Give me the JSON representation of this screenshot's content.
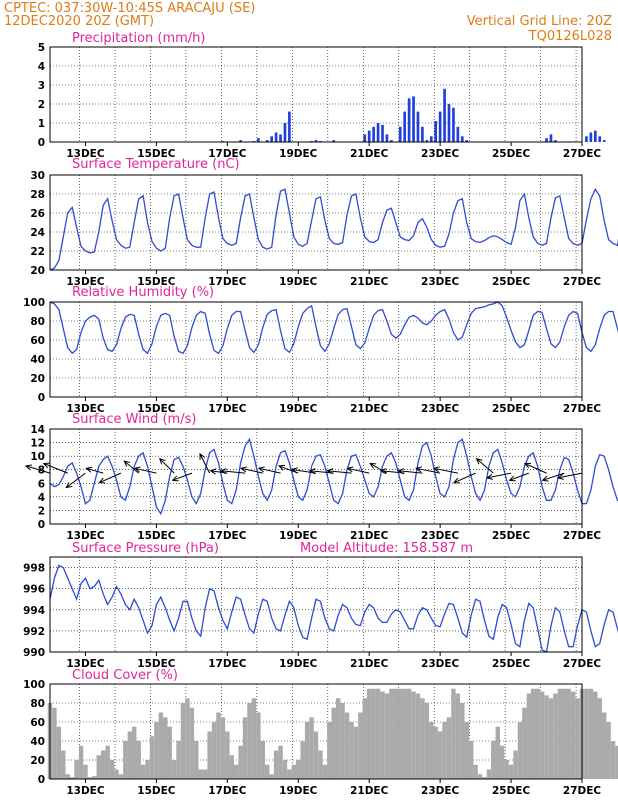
{
  "header": {
    "left_line1": "CPTEC:   037:30W-10:45S   ARACAJU (SE)",
    "left_line2": "12DEC2020 20Z (GMT)",
    "right_line1": "Vertical Grid Line: 20Z",
    "right_line2": "TQ0126L028"
  },
  "colors": {
    "header": "#e07b1a",
    "title": "#e0259a",
    "line": "#2e4bd6",
    "bar_precip": "#1f3fe0",
    "bar_cloud": "#aaaaaa"
  },
  "chart_data": [
    {
      "id": "precip",
      "type": "bar",
      "title": "Precipitation (mm/h)",
      "ylim": [
        0,
        5
      ],
      "yticks": [
        0,
        1,
        2,
        3,
        4,
        5
      ],
      "xlabels": [
        "13DEC",
        "15DEC",
        "17DEC",
        "19DEC",
        "21DEC",
        "23DEC",
        "25DEC",
        "27DEC"
      ],
      "x_start_day": 12.0,
      "x_step_hours": 3,
      "values": [
        0,
        0,
        0,
        0,
        0,
        0,
        0,
        0,
        0,
        0,
        0,
        0,
        0,
        0,
        0,
        0,
        0,
        0,
        0,
        0,
        0,
        0,
        0,
        0,
        0,
        0,
        0,
        0,
        0,
        0,
        0,
        0,
        0,
        0,
        0,
        0,
        0,
        0,
        0,
        0.05,
        0,
        0,
        0,
        0.1,
        0,
        0,
        0.05,
        0.2,
        0,
        0.1,
        0.3,
        0.5,
        0.4,
        1.0,
        1.6,
        0,
        0,
        0,
        0,
        0.05,
        0.1,
        0.05,
        0,
        0,
        0.1,
        0,
        0,
        0,
        0,
        0,
        0,
        0.4,
        0.6,
        0.8,
        1.0,
        0.9,
        0.4,
        0.1,
        0,
        0.8,
        1.6,
        2.3,
        2.4,
        1.6,
        0.8,
        0.1,
        0.3,
        1.1,
        1.6,
        2.8,
        2.0,
        1.8,
        0.8,
        0.3,
        0.1,
        0,
        0,
        0,
        0,
        0,
        0,
        0,
        0,
        0,
        0,
        0,
        0,
        0,
        0,
        0,
        0,
        0,
        0.2,
        0.4,
        0.1,
        0,
        0,
        0,
        0,
        0,
        0,
        0.3,
        0.5,
        0.6,
        0.3,
        0.1,
        0,
        0,
        0,
        0,
        0,
        0,
        0,
        0,
        0,
        0
      ]
    },
    {
      "id": "temp",
      "type": "line",
      "title": "Surface Temperature (nC)",
      "ylim": [
        20,
        30
      ],
      "yticks": [
        20,
        22,
        24,
        26,
        28,
        30
      ],
      "xlabels": [
        "13DEC",
        "15DEC",
        "17DEC",
        "19DEC",
        "21DEC",
        "23DEC",
        "25DEC",
        "27DEC"
      ],
      "x_start_day": 12.0,
      "x_step_hours": 3,
      "values": [
        19.8,
        20.2,
        21.0,
        23.5,
        26.0,
        26.6,
        24.5,
        22.5,
        22.0,
        21.8,
        21.9,
        24.0,
        26.8,
        27.5,
        25.2,
        23.2,
        22.6,
        22.3,
        22.4,
        25.0,
        27.5,
        27.8,
        25.0,
        23.0,
        22.3,
        22.0,
        22.3,
        25.5,
        27.8,
        28.0,
        25.5,
        23.2,
        22.6,
        22.4,
        22.4,
        25.5,
        28.0,
        28.2,
        25.5,
        23.3,
        22.8,
        22.6,
        22.8,
        25.5,
        27.8,
        28.0,
        25.5,
        23.2,
        22.4,
        22.2,
        22.4,
        25.8,
        28.3,
        28.5,
        26.0,
        23.5,
        22.7,
        22.5,
        22.8,
        25.2,
        27.5,
        27.7,
        25.2,
        23.3,
        22.8,
        22.7,
        22.9,
        25.8,
        27.8,
        28.0,
        25.5,
        23.5,
        23.0,
        22.9,
        23.2,
        25.0,
        26.3,
        26.5,
        25.0,
        23.5,
        23.2,
        23.1,
        23.6,
        25.0,
        25.4,
        24.5,
        23.2,
        22.6,
        22.4,
        22.5,
        23.8,
        26.0,
        27.3,
        27.5,
        25.0,
        23.3,
        23.0,
        22.9,
        23.1,
        23.4,
        23.6,
        23.5,
        23.2,
        22.9,
        22.7,
        24.5,
        27.3,
        28.0,
        25.5,
        23.5,
        22.8,
        22.6,
        22.8,
        25.5,
        27.6,
        27.8,
        25.5,
        23.3,
        22.8,
        22.6,
        22.8,
        25.3,
        27.5,
        28.5,
        27.8,
        25.2,
        23.2,
        22.8,
        22.6,
        25.2,
        28.0,
        28.3,
        26.0,
        23.6,
        22.8,
        22.7,
        22.9,
        26.3,
        28.5,
        28.7,
        25.5
      ]
    },
    {
      "id": "rh",
      "type": "line",
      "title": "Relative Humidity (%)",
      "ylim": [
        0,
        100
      ],
      "yticks": [
        0,
        20,
        40,
        60,
        80,
        100
      ],
      "xlabels": [
        "13DEC",
        "15DEC",
        "17DEC",
        "19DEC",
        "21DEC",
        "23DEC",
        "25DEC",
        "27DEC"
      ],
      "x_start_day": 12.0,
      "x_step_hours": 3,
      "values": [
        100,
        98,
        92,
        72,
        52,
        46,
        50,
        68,
        80,
        84,
        86,
        82,
        62,
        50,
        48,
        55,
        72,
        84,
        87,
        86,
        66,
        50,
        46,
        56,
        74,
        86,
        88,
        86,
        64,
        48,
        46,
        54,
        73,
        86,
        90,
        88,
        66,
        49,
        46,
        54,
        72,
        86,
        90,
        90,
        70,
        52,
        47,
        55,
        73,
        87,
        91,
        92,
        70,
        51,
        47,
        56,
        74,
        88,
        93,
        96,
        74,
        54,
        48,
        56,
        72,
        87,
        92,
        93,
        74,
        55,
        51,
        57,
        72,
        86,
        91,
        92,
        80,
        66,
        62,
        66,
        76,
        84,
        86,
        83,
        78,
        76,
        80,
        86,
        90,
        92,
        82,
        68,
        60,
        63,
        76,
        88,
        93,
        94,
        95,
        97,
        98,
        100,
        96,
        84,
        70,
        58,
        52,
        55,
        70,
        86,
        90,
        89,
        72,
        56,
        52,
        58,
        74,
        86,
        90,
        88,
        68,
        52,
        48,
        55,
        72,
        86,
        90,
        90,
        72,
        55,
        51,
        57,
        73,
        85,
        89,
        88,
        66,
        50,
        46,
        53,
        70,
        82,
        86
      ]
    },
    {
      "id": "wind",
      "type": "line",
      "title": "Surface Wind (m/s)",
      "ylim": [
        0,
        14
      ],
      "yticks": [
        0,
        2,
        4,
        6,
        8,
        10,
        12,
        14
      ],
      "xlabels": [
        "13DEC",
        "15DEC",
        "17DEC",
        "19DEC",
        "21DEC",
        "23DEC",
        "25DEC",
        "27DEC"
      ],
      "x_start_day": 12.0,
      "x_step_hours": 3,
      "values": [
        6,
        5.5,
        5.8,
        7,
        8.5,
        9,
        7.5,
        5.5,
        3,
        3.5,
        6,
        8.5,
        9.5,
        10,
        8.5,
        6.5,
        4,
        3.5,
        5.5,
        8.5,
        10,
        10.5,
        8.5,
        5.5,
        2.5,
        1.5,
        3.5,
        7,
        9.5,
        9.8,
        8.5,
        6.5,
        4,
        3,
        4.5,
        8,
        10.5,
        11,
        9,
        6,
        3.5,
        3,
        5,
        9,
        11.5,
        12.5,
        10,
        7,
        4.5,
        3.5,
        5,
        8.5,
        10.5,
        10.8,
        9,
        6.5,
        4,
        3.5,
        5,
        8.5,
        10,
        10.2,
        8.5,
        6,
        3.5,
        3,
        4.5,
        8,
        10,
        10.2,
        8.5,
        6.5,
        4.5,
        4,
        5.5,
        8.5,
        10,
        10.5,
        9,
        6.5,
        4,
        3.5,
        5,
        9,
        11.5,
        12,
        10,
        7,
        4.5,
        4,
        5.5,
        9.5,
        12,
        12.5,
        10,
        7,
        4.5,
        3.5,
        5,
        8.5,
        10.5,
        11,
        9,
        6.5,
        4.5,
        4,
        5.5,
        8.5,
        10,
        10.5,
        8.5,
        5.5,
        3.5,
        3.5,
        5,
        8,
        9.8,
        9.5,
        7.5,
        5,
        3,
        3,
        5,
        8.5,
        10.2,
        10,
        8,
        5.5,
        3.5,
        3.5,
        5.5,
        8.5,
        10,
        10.5,
        8.5,
        6.5,
        4.5,
        4.5,
        6.5,
        9,
        10.5,
        10.5
      ]
    },
    {
      "id": "pressure",
      "type": "line",
      "title": "Surface Pressure (hPa)",
      "subtitle": "Model Altitude:  158.587 m",
      "ylim": [
        990,
        999
      ],
      "yticks": [
        990,
        992,
        994,
        996,
        998
      ],
      "xlabels": [
        "13DEC",
        "15DEC",
        "17DEC",
        "19DEC",
        "21DEC",
        "23DEC",
        "25DEC",
        "27DEC"
      ],
      "x_start_day": 12.0,
      "x_step_hours": 3,
      "values": [
        995,
        997,
        998.2,
        998,
        997,
        996,
        995,
        996.5,
        997,
        996,
        996.2,
        996.8,
        995.5,
        994.5,
        995.2,
        996.2,
        995.5,
        994.5,
        994,
        995,
        994.2,
        993,
        991.8,
        992.5,
        994.5,
        995.2,
        994.2,
        993,
        992,
        993.2,
        994.8,
        994.8,
        993.2,
        992,
        991.5,
        994.2,
        996,
        995.8,
        994.2,
        993,
        992.2,
        993.8,
        995.2,
        995,
        993.5,
        992.2,
        991.8,
        993.6,
        995,
        994.8,
        993.2,
        992.2,
        992,
        993.5,
        994.8,
        994.2,
        992.5,
        991.4,
        991.2,
        993.2,
        995,
        994.8,
        993.2,
        992.2,
        992,
        993.5,
        994.5,
        994.2,
        993.2,
        992.6,
        992.5,
        993.8,
        994.5,
        994.2,
        993.2,
        992.8,
        992.8,
        993.6,
        994,
        993.8,
        993,
        992.2,
        992.2,
        993.5,
        994.2,
        994,
        993.2,
        992.5,
        992.4,
        993.6,
        994.6,
        994.5,
        993.2,
        991.8,
        991.4,
        993.5,
        995,
        994.8,
        993,
        991.5,
        991.2,
        993.3,
        994.5,
        994.2,
        992.6,
        990.8,
        990.5,
        993,
        994.6,
        994.2,
        992.2,
        990.2,
        990,
        992.5,
        994.2,
        993.8,
        992,
        990.5,
        990.5,
        992.5,
        994,
        993.8,
        992,
        990.5,
        990.8,
        992.6,
        994,
        993.8,
        992.2,
        990.8,
        990.5,
        992.5,
        994.5,
        995.2,
        993,
        990.5,
        990.2,
        992.8,
        995.2,
        995.4,
        993.5,
        991.2,
        990.6,
        993
      ]
    },
    {
      "id": "cloud",
      "type": "bar",
      "title": "Cloud Cover (%)",
      "ylim": [
        0,
        100
      ],
      "yticks": [
        0,
        20,
        40,
        60,
        80,
        100
      ],
      "xlabels": [
        "13DEC",
        "15DEC",
        "17DEC",
        "19DEC",
        "21DEC",
        "23DEC",
        "25DEC",
        "27DEC"
      ],
      "x_start_day": 12.0,
      "x_step_hours": 3,
      "values": [
        80,
        75,
        55,
        30,
        5,
        2,
        20,
        35,
        15,
        2,
        3,
        25,
        30,
        35,
        20,
        10,
        5,
        40,
        50,
        55,
        40,
        15,
        20,
        45,
        60,
        70,
        65,
        55,
        20,
        40,
        80,
        85,
        75,
        40,
        10,
        10,
        50,
        60,
        70,
        65,
        50,
        25,
        15,
        35,
        65,
        80,
        85,
        70,
        40,
        15,
        5,
        30,
        35,
        20,
        10,
        15,
        20,
        40,
        60,
        65,
        50,
        30,
        15,
        60,
        75,
        85,
        80,
        70,
        60,
        55,
        70,
        85,
        95,
        95,
        95,
        92,
        90,
        95,
        95,
        95,
        95,
        95,
        92,
        90,
        85,
        80,
        60,
        55,
        50,
        60,
        65,
        95,
        90,
        80,
        60,
        40,
        15,
        5,
        2,
        10,
        40,
        55,
        35,
        20,
        15,
        30,
        60,
        75,
        90,
        95,
        95,
        92,
        88,
        85,
        90,
        95,
        95,
        95,
        92,
        85,
        95,
        95,
        95,
        92,
        85,
        70,
        60,
        40,
        35,
        55,
        75,
        80,
        75,
        55,
        40,
        30,
        50
      ]
    },
    {
      "id": "wind_arrows",
      "type": "scatter",
      "title": "",
      "x_start_day": 12.0,
      "x_step_hours": 12,
      "u": [
        -1,
        -1,
        -0.8,
        -0.7,
        -0.9,
        -0.6,
        -0.9,
        -0.6,
        -0.8,
        -0.4,
        -0.7,
        -1,
        -0.9,
        -0.9,
        -0.8,
        -1,
        -1,
        -1,
        -0.9,
        -0.7,
        -1,
        -1,
        -1,
        -1,
        -0.9,
        -0.7,
        -1,
        -0.8,
        -0.9,
        -0.9,
        -1
      ],
      "v": [
        0.3,
        0.4,
        -0.6,
        0.2,
        -0.4,
        0.5,
        0.2,
        0.6,
        -0.3,
        0.8,
        0.1,
        0.1,
        0.2,
        0.2,
        0.3,
        0.15,
        0.1,
        0.1,
        0.2,
        0.4,
        0.1,
        0.1,
        0.2,
        0.2,
        -0.4,
        0.6,
        -0.2,
        -0.3,
        0.4,
        -0.3,
        -0.2
      ]
    }
  ]
}
